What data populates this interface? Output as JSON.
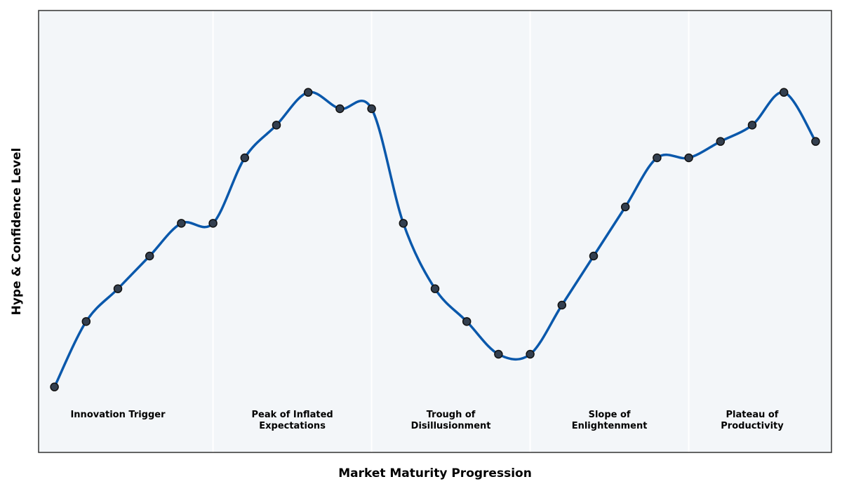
{
  "chart_data": {
    "type": "line",
    "title": "",
    "xlabel": "Market Maturity Progression",
    "ylabel": "Hype & Confidence Level",
    "x": [
      0,
      1,
      2,
      3,
      4,
      5,
      6,
      7,
      8,
      9,
      10,
      11,
      12,
      13,
      14,
      15,
      16,
      17,
      18,
      19,
      20,
      21,
      22,
      23,
      24
    ],
    "series": [
      {
        "values": [
          20,
          40,
          50,
          60,
          70,
          70,
          90,
          100,
          110,
          105,
          105,
          70,
          50,
          40,
          30,
          30,
          45,
          60,
          75,
          90,
          90,
          95,
          100,
          110,
          95
        ]
      }
    ],
    "xlim": [
      -0.5,
      24.5
    ],
    "ylim": [
      0,
      135
    ],
    "phases": [
      {
        "label": "Innovation Trigger",
        "start": -0.5,
        "end": 5
      },
      {
        "label": "Peak of Inflated\nExpectations",
        "start": 5,
        "end": 10
      },
      {
        "label": "Trough of\nDisillusionment",
        "start": 10,
        "end": 15
      },
      {
        "label": "Slope of\nEnlightenment",
        "start": 15,
        "end": 20
      },
      {
        "label": "Plateau of\nProductivity",
        "start": 20,
        "end": 24.5
      }
    ],
    "grid": false,
    "colors": {
      "line": "#0a58ab",
      "marker_fill": "#333f4f",
      "marker_edge": "#111111",
      "background": "#f3f6f9",
      "divider": "#ffffff",
      "frame": "#333333"
    }
  }
}
